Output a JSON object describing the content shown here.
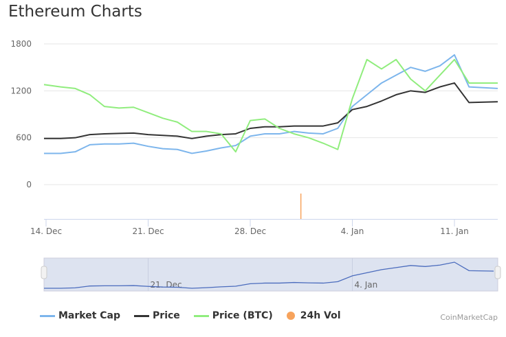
{
  "chart_data": {
    "title": "Ethereum Charts",
    "type": "line",
    "x": [
      "2017-12-14",
      "2017-12-15",
      "2017-12-16",
      "2017-12-17",
      "2017-12-18",
      "2017-12-19",
      "2017-12-20",
      "2017-12-21",
      "2017-12-22",
      "2017-12-23",
      "2017-12-24",
      "2017-12-25",
      "2017-12-26",
      "2017-12-27",
      "2017-12-28",
      "2017-12-29",
      "2017-12-30",
      "2017-12-31",
      "2018-01-01",
      "2018-01-02",
      "2018-01-03",
      "2018-01-04",
      "2018-01-05",
      "2018-01-06",
      "2018-01-07",
      "2018-01-08",
      "2018-01-09",
      "2018-01-10",
      "2018-01-11",
      "2018-01-12",
      "2018-01-13"
    ],
    "series": [
      {
        "name": "Market Cap",
        "color": "#7cb5ec",
        "values": [
          400,
          400,
          420,
          510,
          520,
          520,
          530,
          490,
          460,
          450,
          400,
          430,
          470,
          500,
          620,
          650,
          650,
          680,
          660,
          650,
          720,
          1000,
          1150,
          1300,
          1400,
          1500,
          1450,
          1520,
          1660,
          1250,
          1230
        ]
      },
      {
        "name": "Price",
        "color": "#333333",
        "values": [
          590,
          590,
          600,
          640,
          650,
          655,
          660,
          640,
          630,
          620,
          590,
          620,
          640,
          650,
          720,
          740,
          740,
          750,
          750,
          750,
          790,
          960,
          1000,
          1070,
          1150,
          1200,
          1180,
          1250,
          1300,
          1050,
          1060
        ]
      },
      {
        "name": "Price (BTC)",
        "color": "#90ed7d",
        "values": [
          1280,
          1250,
          1230,
          1150,
          1000,
          980,
          990,
          920,
          850,
          800,
          680,
          680,
          650,
          420,
          820,
          840,
          720,
          650,
          600,
          530,
          450,
          1100,
          1600,
          1480,
          1600,
          1350,
          1200,
          1400,
          1600,
          1300,
          1300
        ]
      }
    ],
    "volume": {
      "name": "24h Vol",
      "color": "#f7a35c",
      "points": [
        {
          "x": "2017-12-31",
          "value": 1
        }
      ]
    },
    "yticks": [
      0,
      600,
      1200,
      1800
    ],
    "ylim": [
      0,
      1800
    ],
    "xticks": [
      "14. Dec",
      "21. Dec",
      "28. Dec",
      "4. Jan",
      "11. Jan"
    ],
    "navigator_labels": [
      "21. Dec",
      "4. Jan"
    ],
    "grid": true,
    "legend_placement": "bottom-left"
  },
  "legend": [
    "Market Cap",
    "Price",
    "Price (BTC)",
    "24h Vol"
  ],
  "credit": "CoinMarketCap"
}
